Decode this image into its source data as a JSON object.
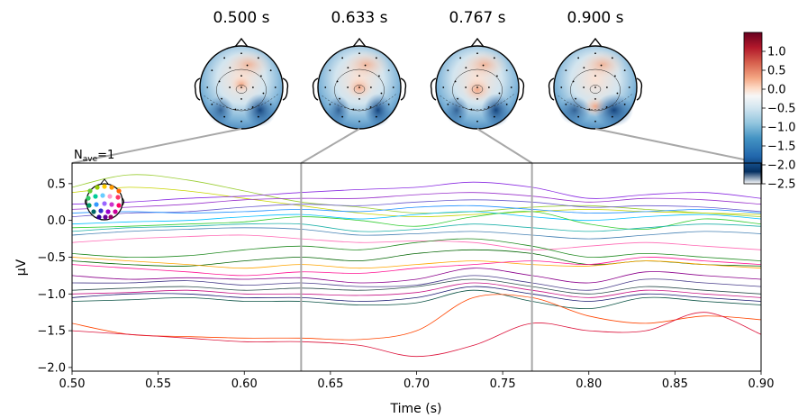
{
  "topomaps": [
    {
      "title": "0.500 s",
      "time": 0.5
    },
    {
      "title": "0.633 s",
      "time": 0.633
    },
    {
      "title": "0.767 s",
      "time": 0.767
    },
    {
      "title": "0.900 s",
      "time": 0.9
    }
  ],
  "nave_label": {
    "base": "N",
    "sub": "ave",
    "suffix": "=1"
  },
  "colorbar": {
    "ticks": [
      "1.0",
      "0.5",
      "0.0",
      "−0.5",
      "−1.0",
      "−1.5",
      "−2.0",
      "−2.5"
    ],
    "tick_values": [
      1.0,
      0.5,
      0.0,
      -0.5,
      -1.0,
      -1.5,
      -2.0,
      -2.5
    ],
    "range": [
      -2.5,
      1.5
    ],
    "colors": [
      "#67001f",
      "#b2182b",
      "#d6604d",
      "#f4a582",
      "#fddbc7",
      "#f7f7f7",
      "#d1e5f0",
      "#92c5de",
      "#4393c3",
      "#2166ac",
      "#053061"
    ]
  },
  "chart_data": {
    "type": "line",
    "xlabel": "Time (s)",
    "ylabel": "µV",
    "xlim": [
      0.5,
      0.9
    ],
    "ylim": [
      -2.05,
      0.78
    ],
    "xticks": [
      "0.50",
      "0.55",
      "0.60",
      "0.65",
      "0.70",
      "0.75",
      "0.80",
      "0.85",
      "0.90"
    ],
    "xtick_values": [
      0.5,
      0.55,
      0.6,
      0.65,
      0.7,
      0.75,
      0.8,
      0.85,
      0.9
    ],
    "yticks": [
      "0.5",
      "0.0",
      "−0.5",
      "−1.0",
      "−1.5",
      "−2.0"
    ],
    "ytick_values": [
      0.5,
      0.0,
      -0.5,
      -1.0,
      -1.5,
      -2.0
    ],
    "vlines": [
      0.633,
      0.767
    ],
    "x": [
      0.5,
      0.533,
      0.567,
      0.6,
      0.633,
      0.667,
      0.7,
      0.733,
      0.767,
      0.8,
      0.833,
      0.867,
      0.9
    ],
    "series": [
      {
        "color": "#9acd32",
        "values": [
          0.45,
          0.62,
          0.55,
          0.4,
          0.25,
          0.18,
          0.1,
          0.12,
          0.18,
          0.2,
          0.15,
          0.1,
          0.05
        ]
      },
      {
        "color": "#c8d400",
        "values": [
          0.38,
          0.45,
          0.4,
          0.3,
          0.2,
          0.1,
          0.05,
          0.08,
          0.12,
          0.15,
          0.12,
          0.1,
          0.08
        ]
      },
      {
        "color": "#8a2be2",
        "values": [
          0.22,
          0.25,
          0.3,
          0.33,
          0.38,
          0.42,
          0.45,
          0.52,
          0.45,
          0.3,
          0.35,
          0.38,
          0.3
        ]
      },
      {
        "color": "#9932cc",
        "values": [
          0.15,
          0.18,
          0.22,
          0.28,
          0.3,
          0.3,
          0.35,
          0.38,
          0.33,
          0.25,
          0.3,
          0.28,
          0.22
        ]
      },
      {
        "color": "#6a5acd",
        "values": [
          0.05,
          0.1,
          0.12,
          0.18,
          0.22,
          0.2,
          0.25,
          0.28,
          0.25,
          0.18,
          0.2,
          0.18,
          0.12
        ]
      },
      {
        "color": "#1e90ff",
        "values": [
          0.1,
          0.12,
          0.1,
          0.12,
          0.15,
          0.12,
          0.18,
          0.2,
          0.15,
          0.1,
          0.12,
          0.15,
          0.1
        ]
      },
      {
        "color": "#00bfff",
        "values": [
          -0.05,
          -0.02,
          0.0,
          0.05,
          0.08,
          0.02,
          0.08,
          0.12,
          0.05,
          0.0,
          0.05,
          0.08,
          0.02
        ]
      },
      {
        "color": "#32cd32",
        "values": [
          -0.1,
          -0.08,
          -0.05,
          -0.02,
          0.05,
          0.0,
          -0.08,
          0.05,
          0.12,
          -0.05,
          -0.12,
          0.02,
          -0.05
        ]
      },
      {
        "color": "#20b2aa",
        "values": [
          -0.15,
          -0.1,
          -0.08,
          -0.05,
          -0.05,
          -0.15,
          -0.12,
          -0.05,
          -0.1,
          -0.15,
          -0.1,
          -0.05,
          -0.08
        ]
      },
      {
        "color": "#4682b4",
        "values": [
          -0.2,
          -0.15,
          -0.12,
          -0.1,
          -0.12,
          -0.2,
          -0.18,
          -0.15,
          -0.2,
          -0.25,
          -0.2,
          -0.15,
          -0.18
        ]
      },
      {
        "color": "#ff69b4",
        "values": [
          -0.3,
          -0.25,
          -0.22,
          -0.2,
          -0.25,
          -0.3,
          -0.28,
          -0.3,
          -0.4,
          -0.35,
          -0.3,
          -0.35,
          -0.4
        ]
      },
      {
        "color": "#228b22",
        "values": [
          -0.45,
          -0.5,
          -0.48,
          -0.4,
          -0.35,
          -0.4,
          -0.3,
          -0.25,
          -0.35,
          -0.5,
          -0.45,
          -0.5,
          -0.55
        ]
      },
      {
        "color": "#006400",
        "values": [
          -0.55,
          -0.6,
          -0.62,
          -0.55,
          -0.5,
          -0.55,
          -0.45,
          -0.4,
          -0.45,
          -0.6,
          -0.55,
          -0.6,
          -0.62
        ]
      },
      {
        "color": "#ffa500",
        "values": [
          -0.5,
          -0.55,
          -0.6,
          -0.65,
          -0.6,
          -0.65,
          -0.6,
          -0.55,
          -0.6,
          -0.62,
          -0.55,
          -0.6,
          -0.65
        ]
      },
      {
        "color": "#ff1493",
        "values": [
          -0.6,
          -0.65,
          -0.7,
          -0.75,
          -0.7,
          -0.72,
          -0.65,
          -0.6,
          -0.55,
          -0.6,
          -0.5,
          -0.55,
          -0.6
        ]
      },
      {
        "color": "#8b008b",
        "values": [
          -0.75,
          -0.8,
          -0.78,
          -0.8,
          -0.78,
          -0.85,
          -0.8,
          -0.65,
          -0.75,
          -0.85,
          -0.7,
          -0.75,
          -0.8
        ]
      },
      {
        "color": "#483d8b",
        "values": [
          -0.85,
          -0.85,
          -0.82,
          -0.88,
          -0.85,
          -0.9,
          -0.88,
          -0.75,
          -0.85,
          -0.95,
          -0.8,
          -0.85,
          -0.9
        ]
      },
      {
        "color": "#2f4f4f",
        "values": [
          -0.95,
          -0.92,
          -0.9,
          -0.95,
          -0.92,
          -0.95,
          -0.9,
          -0.8,
          -0.9,
          -1.0,
          -0.9,
          -0.95,
          -1.0
        ]
      },
      {
        "color": "#c71585",
        "values": [
          -1.0,
          -0.98,
          -0.95,
          -1.0,
          -1.0,
          -1.02,
          -0.98,
          -0.85,
          -0.95,
          -1.05,
          -0.95,
          -1.0,
          -1.05
        ]
      },
      {
        "color": "#191970",
        "values": [
          -1.05,
          -1.0,
          -1.0,
          -1.05,
          -1.05,
          -1.1,
          -1.05,
          -0.9,
          -1.0,
          -1.1,
          -1.0,
          -1.05,
          -1.1
        ]
      },
      {
        "color": "#0b5345",
        "values": [
          -1.1,
          -1.08,
          -1.05,
          -1.1,
          -1.1,
          -1.15,
          -1.12,
          -0.95,
          -1.1,
          -1.2,
          -1.05,
          -1.1,
          -1.15
        ]
      },
      {
        "color": "#ff4500",
        "values": [
          -1.4,
          -1.55,
          -1.58,
          -1.6,
          -1.6,
          -1.62,
          -1.5,
          -1.05,
          -1.05,
          -1.3,
          -1.4,
          -1.3,
          -1.35
        ]
      },
      {
        "color": "#dc143c",
        "values": [
          -1.5,
          -1.55,
          -1.6,
          -1.65,
          -1.65,
          -1.7,
          -1.85,
          -1.7,
          -1.4,
          -1.5,
          -1.5,
          -1.25,
          -1.55
        ]
      }
    ]
  }
}
